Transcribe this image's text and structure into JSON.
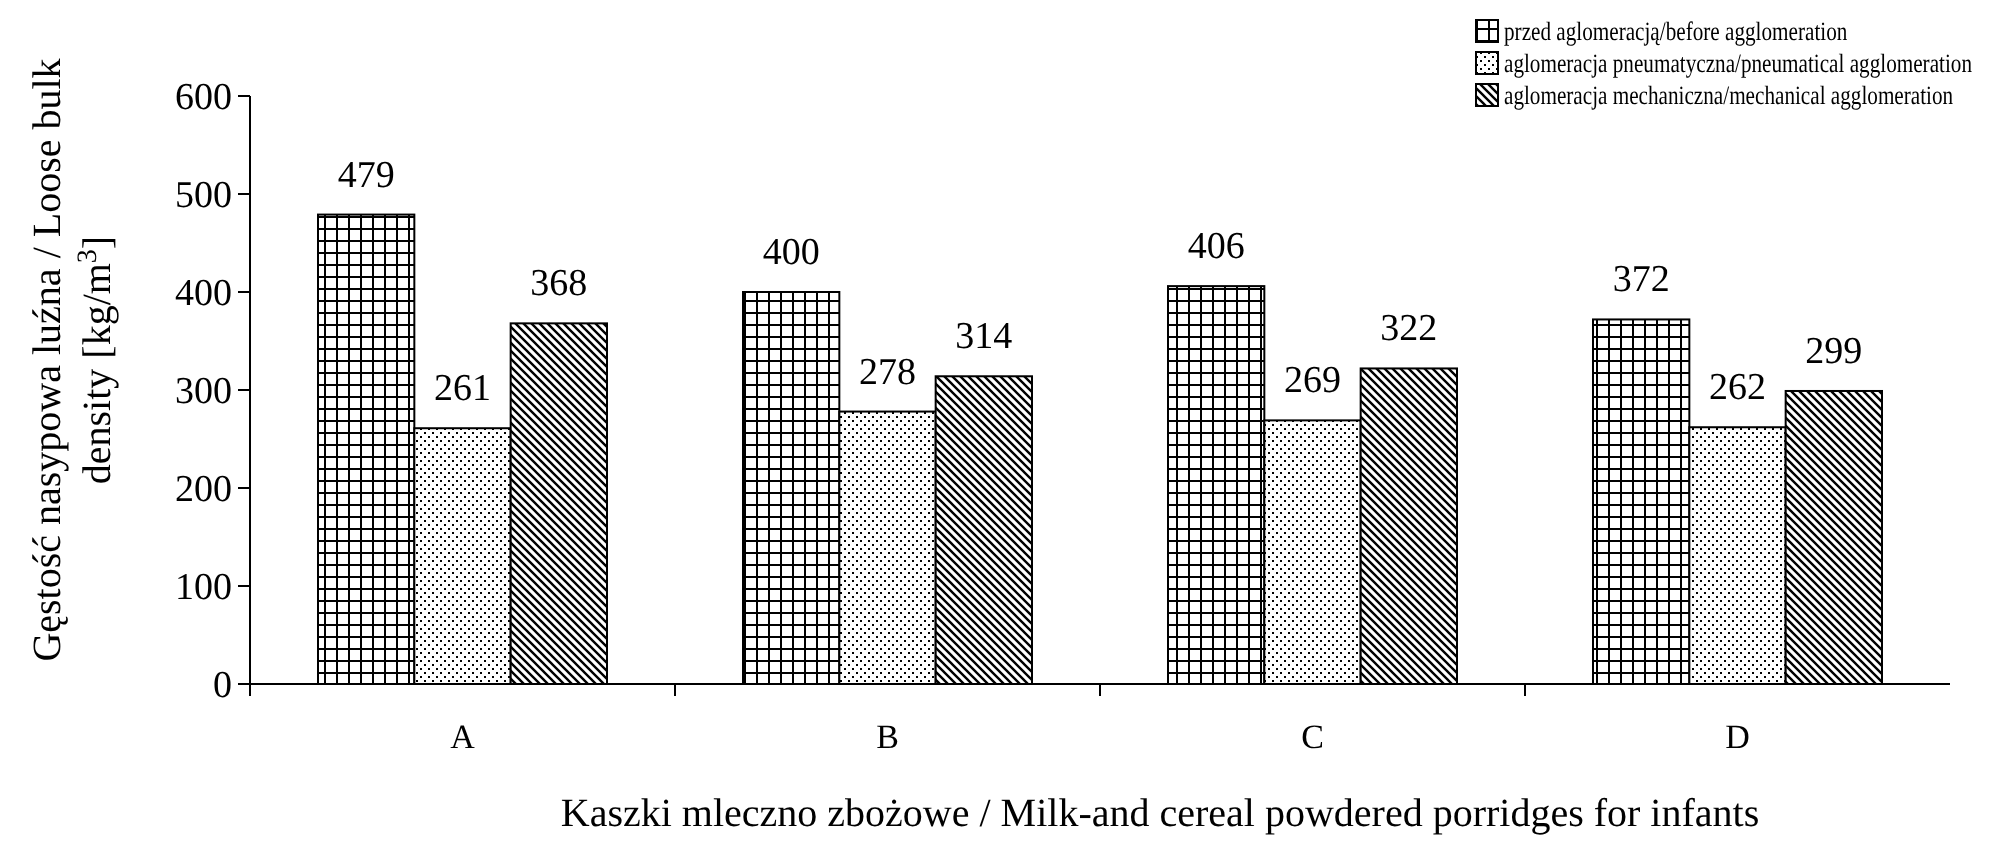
{
  "chart_data": {
    "type": "bar",
    "xlabel": "Kaszki mleczno zbożowe / Milk-and cereal powdered porridges for infants",
    "ylabel": "Gęstość nasypowa luźna / Loose bulk density [kg/m$^{3}$]",
    "categories": [
      "A",
      "B",
      "C",
      "D"
    ],
    "series": [
      {
        "name": "przed aglomeracją/before agglomeration",
        "color": "#000000",
        "values": [
          479,
          400,
          406,
          372
        ]
      },
      {
        "name": "aglomeracja pneumatyczna/pneumatical agglomeration",
        "color": "#000000",
        "values": [
          261,
          278,
          269,
          262
        ]
      },
      {
        "name": "aglomeracja mechaniczna/mechanical agglomeration",
        "color": "#000000",
        "values": [
          368,
          314,
          322,
          299
        ]
      }
    ],
    "ylim": [
      0,
      600
    ],
    "yticks": [
      0,
      100,
      200,
      300,
      400,
      500,
      600
    ],
    "grid": false,
    "legend": "top right",
    "data_labels": true
  }
}
